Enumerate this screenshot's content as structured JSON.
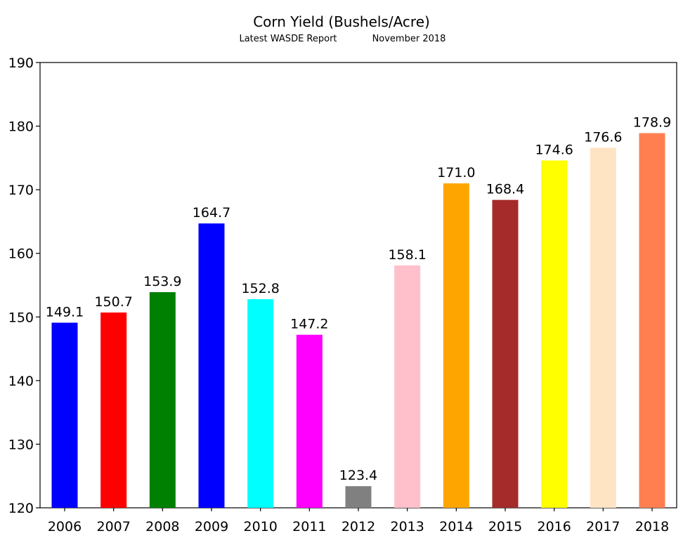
{
  "chart_data": {
    "type": "bar",
    "title": "Corn Yield (Bushels/Acre)",
    "subtitle_left": "Latest WASDE Report",
    "subtitle_right": "November 2018",
    "xlabel": "",
    "ylabel": "",
    "ylim": [
      120,
      190
    ],
    "yticks": [
      120,
      130,
      140,
      150,
      160,
      170,
      180,
      190
    ],
    "grid": false,
    "legend": "none",
    "categories": [
      "2006",
      "2007",
      "2008",
      "2009",
      "2010",
      "2011",
      "2012",
      "2013",
      "2014",
      "2015",
      "2016",
      "2017",
      "2018"
    ],
    "values": [
      149.1,
      150.7,
      153.9,
      164.7,
      152.8,
      147.2,
      123.4,
      158.1,
      171.0,
      168.4,
      174.6,
      176.6,
      178.9
    ],
    "value_labels": [
      "149.1",
      "150.7",
      "153.9",
      "164.7",
      "152.8",
      "147.2",
      "123.4",
      "158.1",
      "171.0",
      "168.4",
      "174.6",
      "176.6",
      "178.9"
    ],
    "colors": [
      "#0000ff",
      "#ff0000",
      "#008000",
      "#0000ff",
      "#00ffff",
      "#ff00ff",
      "#808080",
      "#ffc0cb",
      "#ffa500",
      "#a52a2a",
      "#ffff00",
      "#ffe4c4",
      "#ff7f50"
    ]
  }
}
